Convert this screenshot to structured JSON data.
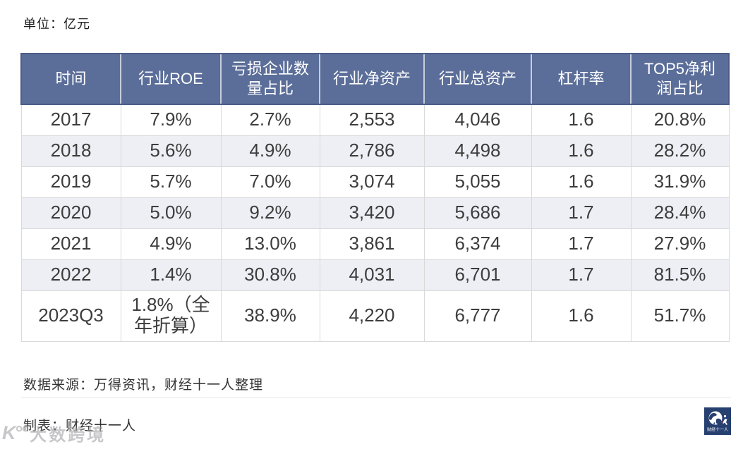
{
  "unit_label": "单位：亿元",
  "chart_data": {
    "type": "table",
    "unit": "亿元",
    "columns": [
      "时间",
      "行业ROE",
      "亏损企业数量占比",
      "行业净资产",
      "行业总资产",
      "杠杆率",
      "TOP5净利润占比"
    ],
    "rows": [
      [
        "2017",
        "7.9%",
        "2.7%",
        "2,553",
        "4,046",
        "1.6",
        "20.8%"
      ],
      [
        "2018",
        "5.6%",
        "4.9%",
        "2,786",
        "4,498",
        "1.6",
        "28.2%"
      ],
      [
        "2019",
        "5.7%",
        "7.0%",
        "3,074",
        "5,055",
        "1.6",
        "31.9%"
      ],
      [
        "2020",
        "5.0%",
        "9.2%",
        "3,420",
        "5,686",
        "1.7",
        "28.4%"
      ],
      [
        "2021",
        "4.9%",
        "13.0%",
        "3,861",
        "6,374",
        "1.7",
        "27.9%"
      ],
      [
        "2022",
        "1.4%",
        "30.8%",
        "4,031",
        "6,701",
        "1.7",
        "81.5%"
      ],
      [
        "2023Q3",
        "1.8%（全年折算）",
        "38.9%",
        "4,220",
        "6,777",
        "1.6",
        "51.7%"
      ]
    ],
    "title": "",
    "legend": [],
    "grid": true
  },
  "footer": {
    "source_label": "数据来源：万得资讯，财经十一人整理",
    "credit_label": "制表：财经十一人"
  },
  "watermark": {
    "icon": "K°°",
    "brand": "大数跨境"
  },
  "logo": {
    "brand": "财经十一人"
  },
  "colors": {
    "header_bg": "#5B6E99",
    "header_border": "#4C5D87",
    "header_text": "#FFFFFF",
    "row_stripe": "#EEEFF4",
    "cell_border": "#D9D9D9",
    "body_text": "#3D3D3D",
    "logo_bg": "#26406F"
  }
}
